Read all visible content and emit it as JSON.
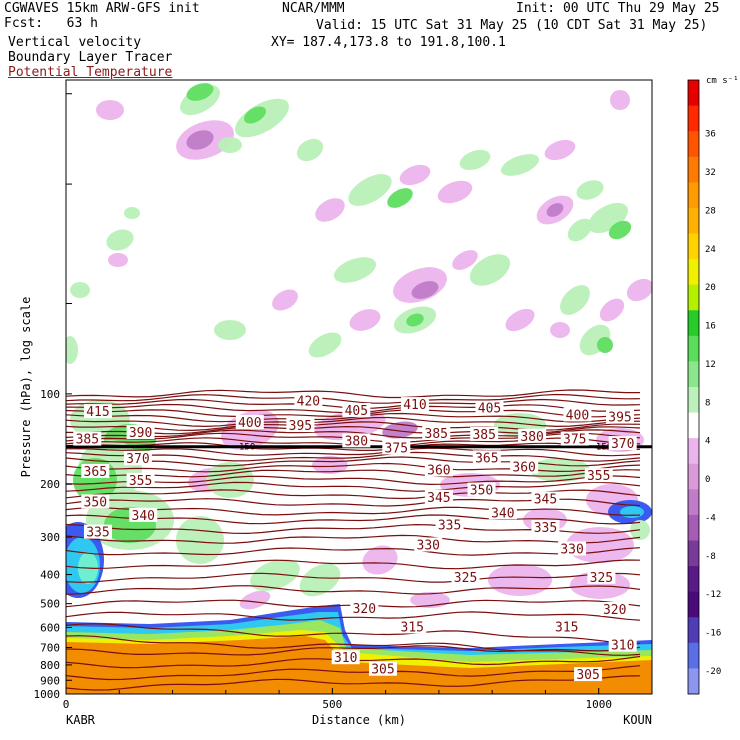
{
  "header": {
    "model": "CGWAVES 15km ARW-GFS init",
    "fcst": "Fcst:   63 h",
    "field1": "Vertical velocity",
    "field2": "Boundary Layer Tracer",
    "field3": "Potential Temperature",
    "org": "NCAR/MMM",
    "init": "Init: 00 UTC Thu 29 May 25",
    "valid": "Valid: 15 UTC Sat 31 May 25 (10 CDT Sat 31 May 25)",
    "xy": "XY= 187.4,173.8 to 191.8,100.1"
  },
  "colors": {
    "theta_line": "#7a0f0f",
    "tracer": "#f28c00",
    "up_light": "#b8f0b8",
    "up_mid": "#60dd60",
    "down_light": "#ecb4ec",
    "down_mid": "#c07cc8"
  },
  "chart_data": {
    "type": "heatmap",
    "xlabel": "Distance (km)",
    "ylabel": "Pressure (hPa), log scale",
    "xlim": [
      0,
      1100
    ],
    "ylim": [
      1000,
      9
    ],
    "y_scale": "log",
    "x_ticks": [
      {
        "value": 0,
        "label": "0"
      },
      {
        "value": 500,
        "label": "500"
      },
      {
        "value": 1000,
        "label": "1000"
      }
    ],
    "y_ticks": [
      {
        "value": 100,
        "label": "100"
      },
      {
        "value": 200,
        "label": "200"
      },
      {
        "value": 300,
        "label": "300"
      },
      {
        "value": 400,
        "label": "400"
      },
      {
        "value": 500,
        "label": "500"
      },
      {
        "value": 600,
        "label": "600"
      },
      {
        "value": 700,
        "label": "700"
      },
      {
        "value": 800,
        "label": "800"
      },
      {
        "value": 900,
        "label": "900"
      },
      {
        "value": 1000,
        "label": "1000"
      }
    ],
    "endpoints": {
      "left": "KABR",
      "right": "KOUN"
    },
    "tropopause_pressure": 150,
    "tropopause_labels": [
      "150",
      "150"
    ],
    "colorbar": {
      "units": "cm s⁻¹",
      "levels": [
        36,
        32,
        28,
        24,
        20,
        16,
        12,
        8,
        4,
        0,
        -4,
        -8,
        -12,
        -16,
        -20
      ],
      "colors": [
        "#e60000",
        "#ff2a00",
        "#ff5500",
        "#ff7a00",
        "#ff9a00",
        "#ffb000",
        "#ffd200",
        "#f0f000",
        "#b4f000",
        "#28cc28",
        "#5add5a",
        "#8ce68c",
        "#bef0be",
        "#ffffff",
        "#ecb4ec",
        "#d89ad8",
        "#c07cc8",
        "#a65cb4",
        "#7a3a9a",
        "#5a1a86",
        "#4a0a7a",
        "#503cb4",
        "#5a6ee6",
        "#8c96f0"
      ]
    },
    "theta_labels": [
      {
        "value": 415,
        "x": 60,
        "p": 115
      },
      {
        "value": 420,
        "x": 455,
        "p": 106
      },
      {
        "value": 410,
        "x": 655,
        "p": 109
      },
      {
        "value": 405,
        "x": 545,
        "p": 114
      },
      {
        "value": 405,
        "x": 795,
        "p": 112
      },
      {
        "value": 400,
        "x": 345,
        "p": 125
      },
      {
        "value": 400,
        "x": 960,
        "p": 118
      },
      {
        "value": 395,
        "x": 440,
        "p": 128
      },
      {
        "value": 395,
        "x": 1040,
        "p": 120
      },
      {
        "value": 390,
        "x": 140,
        "p": 135
      },
      {
        "value": 385,
        "x": 40,
        "p": 142
      },
      {
        "value": 385,
        "x": 695,
        "p": 136
      },
      {
        "value": 385,
        "x": 785,
        "p": 137
      },
      {
        "value": 380,
        "x": 545,
        "p": 144
      },
      {
        "value": 380,
        "x": 875,
        "p": 139
      },
      {
        "value": 375,
        "x": 620,
        "p": 152
      },
      {
        "value": 375,
        "x": 955,
        "p": 142
      },
      {
        "value": 370,
        "x": 135,
        "p": 165
      },
      {
        "value": 370,
        "x": 1045,
        "p": 147
      },
      {
        "value": 365,
        "x": 55,
        "p": 182
      },
      {
        "value": 365,
        "x": 790,
        "p": 164
      },
      {
        "value": 360,
        "x": 700,
        "p": 180
      },
      {
        "value": 360,
        "x": 860,
        "p": 176
      },
      {
        "value": 355,
        "x": 140,
        "p": 195
      },
      {
        "value": 355,
        "x": 1000,
        "p": 188
      },
      {
        "value": 350,
        "x": 55,
        "p": 230
      },
      {
        "value": 350,
        "x": 780,
        "p": 210
      },
      {
        "value": 345,
        "x": 700,
        "p": 222
      },
      {
        "value": 345,
        "x": 900,
        "p": 225
      },
      {
        "value": 340,
        "x": 145,
        "p": 255
      },
      {
        "value": 340,
        "x": 820,
        "p": 250
      },
      {
        "value": 335,
        "x": 60,
        "p": 290
      },
      {
        "value": 335,
        "x": 720,
        "p": 275
      },
      {
        "value": 335,
        "x": 900,
        "p": 280
      },
      {
        "value": 330,
        "x": 680,
        "p": 320
      },
      {
        "value": 330,
        "x": 950,
        "p": 330
      },
      {
        "value": 325,
        "x": 750,
        "p": 410
      },
      {
        "value": 325,
        "x": 1005,
        "p": 410
      },
      {
        "value": 320,
        "x": 560,
        "p": 520
      },
      {
        "value": 320,
        "x": 1030,
        "p": 525
      },
      {
        "value": 315,
        "x": 650,
        "p": 600
      },
      {
        "value": 315,
        "x": 940,
        "p": 600
      },
      {
        "value": 310,
        "x": 525,
        "p": 760
      },
      {
        "value": 310,
        "x": 1045,
        "p": 690
      },
      {
        "value": 305,
        "x": 595,
        "p": 830
      },
      {
        "value": 305,
        "x": 980,
        "p": 865
      }
    ]
  }
}
